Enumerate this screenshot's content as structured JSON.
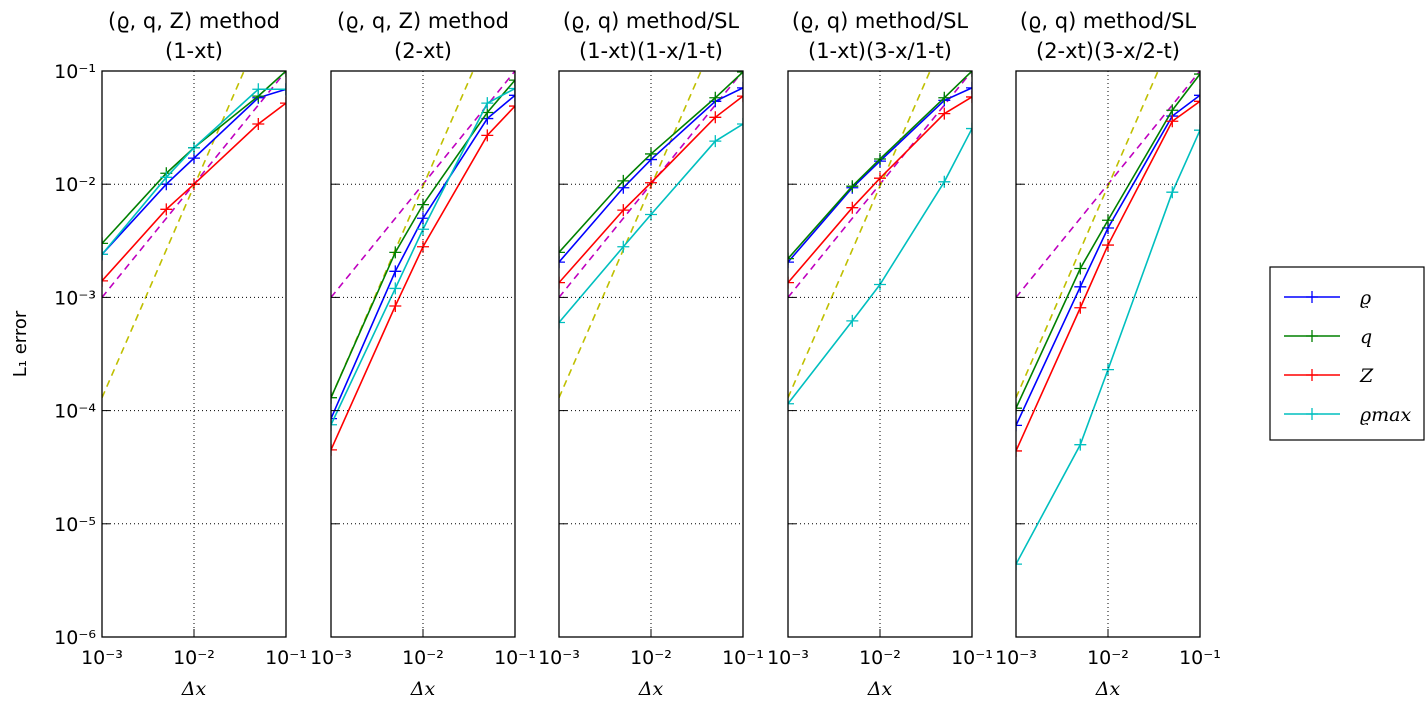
{
  "chart_data": [
    {
      "type": "line",
      "title": "(ϱ, q, Z) method",
      "subtitle": "(1-xt)",
      "x_label": "Δx",
      "y_label": "L₁ error",
      "xscale": "log",
      "yscale": "log",
      "grid": true,
      "legend": "right",
      "xlim": [
        0.001,
        0.1
      ],
      "ylim": [
        1e-06,
        0.1
      ],
      "xticks": [
        {
          "value": 0.001,
          "label": "10⁻³"
        },
        {
          "value": 0.01,
          "label": "10⁻²"
        },
        {
          "value": 0.1,
          "label": "10⁻¹"
        }
      ],
      "yticks": [
        {
          "value": 1e-06,
          "label": "10⁻⁶"
        },
        {
          "value": 1e-05,
          "label": "10⁻⁵"
        },
        {
          "value": 0.0001,
          "label": "10⁻⁴"
        },
        {
          "value": 0.001,
          "label": "10⁻³"
        },
        {
          "value": 0.01,
          "label": "10⁻²"
        },
        {
          "value": 0.1,
          "label": "10⁻¹"
        }
      ],
      "x": [
        0.001,
        0.005,
        0.01,
        0.05,
        0.1
      ],
      "series": [
        {
          "name": "ϱ",
          "color": "#0000ff",
          "values": [
            0.0024,
            0.01,
            0.017,
            0.058,
            0.069
          ]
        },
        {
          "name": "q",
          "color": "#008000",
          "values": [
            0.003,
            0.0125,
            0.021,
            0.06,
            0.1
          ]
        },
        {
          "name": "Z",
          "color": "#ff0000",
          "values": [
            0.0014,
            0.006,
            0.01,
            0.034,
            0.052
          ]
        },
        {
          "name": "ϱmax",
          "color": "#00bfbf",
          "values": [
            0.0024,
            0.0115,
            0.021,
            0.069,
            0.069
          ]
        }
      ],
      "reference_lines": [
        {
          "color": "#bf00bf",
          "x": [
            0.001,
            0.1
          ],
          "values": [
            0.001,
            0.1
          ]
        },
        {
          "color": "#bfbf00",
          "x": [
            0.001,
            0.035
          ],
          "values": [
            0.00013,
            0.1
          ]
        }
      ]
    },
    {
      "type": "line",
      "title": "(ϱ, q, Z) method",
      "subtitle": "(2-xt)",
      "x_label": "Δx",
      "xscale": "log",
      "yscale": "log",
      "grid": true,
      "xlim": [
        0.001,
        0.1
      ],
      "ylim": [
        1e-06,
        0.1
      ],
      "xticks": [
        {
          "value": 0.001,
          "label": "10⁻³"
        },
        {
          "value": 0.01,
          "label": "10⁻²"
        },
        {
          "value": 0.1,
          "label": "10⁻¹"
        }
      ],
      "yticks": [
        1e-06,
        1e-05,
        0.0001,
        0.001,
        0.01,
        0.1
      ],
      "x": [
        0.001,
        0.005,
        0.01,
        0.05,
        0.1
      ],
      "series": [
        {
          "name": "ϱ",
          "color": "#0000ff",
          "values": [
            8.5e-05,
            0.0017,
            0.005,
            0.038,
            0.061
          ]
        },
        {
          "name": "q",
          "color": "#008000",
          "values": [
            0.00013,
            0.0025,
            0.0066,
            0.043,
            0.083
          ]
        },
        {
          "name": "Z",
          "color": "#ff0000",
          "values": [
            4.5e-05,
            0.00084,
            0.0028,
            0.027,
            0.049
          ]
        },
        {
          "name": "ϱmax",
          "color": "#00bfbf",
          "values": [
            7.5e-05,
            0.0012,
            0.004,
            0.052,
            0.07
          ]
        }
      ],
      "reference_lines": [
        {
          "color": "#bf00bf",
          "x": [
            0.001,
            0.1
          ],
          "values": [
            0.001,
            0.1
          ]
        },
        {
          "color": "#bfbf00",
          "x": [
            0.001,
            0.035
          ],
          "values": [
            0.00013,
            0.1
          ]
        }
      ]
    },
    {
      "type": "line",
      "title": "(ϱ, q) method/SL",
      "subtitle": "(1-xt)(1-x/1-t)",
      "x_label": "Δx",
      "xscale": "log",
      "yscale": "log",
      "grid": true,
      "xlim": [
        0.001,
        0.1
      ],
      "ylim": [
        1e-06,
        0.1
      ],
      "xticks": [
        {
          "value": 0.001,
          "label": "10⁻³"
        },
        {
          "value": 0.01,
          "label": "10⁻²"
        },
        {
          "value": 0.1,
          "label": "10⁻¹"
        }
      ],
      "yticks": [
        1e-06,
        1e-05,
        0.0001,
        0.001,
        0.01,
        0.1
      ],
      "x": [
        0.001,
        0.005,
        0.01,
        0.05,
        0.1
      ],
      "series": [
        {
          "name": "ϱ",
          "color": "#0000ff",
          "values": [
            0.00205,
            0.0093,
            0.0165,
            0.054,
            0.071
          ]
        },
        {
          "name": "q",
          "color": "#008000",
          "values": [
            0.0025,
            0.0107,
            0.0185,
            0.058,
            0.098
          ]
        },
        {
          "name": "Z",
          "color": "#ff0000",
          "values": [
            0.00135,
            0.0059,
            0.0103,
            0.039,
            0.06
          ]
        },
        {
          "name": "ϱmax",
          "color": "#00bfbf",
          "values": [
            0.0006,
            0.0028,
            0.0054,
            0.024,
            0.034
          ]
        }
      ],
      "reference_lines": [
        {
          "color": "#bf00bf",
          "x": [
            0.001,
            0.1
          ],
          "values": [
            0.001,
            0.1
          ]
        },
        {
          "color": "#bfbf00",
          "x": [
            0.001,
            0.035
          ],
          "values": [
            0.00013,
            0.1
          ]
        }
      ]
    },
    {
      "type": "line",
      "title": "(ϱ, q) method/SL",
      "subtitle": "(1-xt)(3-x/1-t)",
      "x_label": "Δx",
      "xscale": "log",
      "yscale": "log",
      "grid": true,
      "xlim": [
        0.001,
        0.1
      ],
      "ylim": [
        1e-06,
        0.1
      ],
      "xticks": [
        {
          "value": 0.001,
          "label": "10⁻³"
        },
        {
          "value": 0.01,
          "label": "10⁻²"
        },
        {
          "value": 0.1,
          "label": "10⁻¹"
        }
      ],
      "yticks": [
        1e-06,
        1e-05,
        0.0001,
        0.001,
        0.01,
        0.1
      ],
      "x": [
        0.001,
        0.005,
        0.01,
        0.05,
        0.1
      ],
      "series": [
        {
          "name": "ϱ",
          "color": "#0000ff",
          "values": [
            0.00205,
            0.0093,
            0.016,
            0.055,
            0.071
          ]
        },
        {
          "name": "q",
          "color": "#008000",
          "values": [
            0.0022,
            0.0096,
            0.0167,
            0.058,
            0.1
          ]
        },
        {
          "name": "Z",
          "color": "#ff0000",
          "values": [
            0.00135,
            0.0062,
            0.0113,
            0.042,
            0.059
          ]
        },
        {
          "name": "ϱmax",
          "color": "#00bfbf",
          "values": [
            0.000115,
            0.00062,
            0.0013,
            0.0105,
            0.031
          ]
        }
      ],
      "reference_lines": [
        {
          "color": "#bf00bf",
          "x": [
            0.001,
            0.1
          ],
          "values": [
            0.001,
            0.1
          ]
        },
        {
          "color": "#bfbf00",
          "x": [
            0.001,
            0.035
          ],
          "values": [
            0.00013,
            0.1
          ]
        }
      ]
    },
    {
      "type": "line",
      "title": "(ϱ, q) method/SL",
      "subtitle": "(2-xt)(3-x/2-t)",
      "x_label": "Δx",
      "xscale": "log",
      "yscale": "log",
      "grid": true,
      "xlim": [
        0.001,
        0.1
      ],
      "ylim": [
        1e-06,
        0.1
      ],
      "xticks": [
        {
          "value": 0.001,
          "label": "10⁻³"
        },
        {
          "value": 0.01,
          "label": "10⁻²"
        },
        {
          "value": 0.1,
          "label": "10⁻¹"
        }
      ],
      "yticks": [
        1e-06,
        1e-05,
        0.0001,
        0.001,
        0.01,
        0.1
      ],
      "x": [
        0.001,
        0.005,
        0.01,
        0.05,
        0.1
      ],
      "series": [
        {
          "name": "ϱ",
          "color": "#0000ff",
          "values": [
            7.4e-05,
            0.00124,
            0.0041,
            0.04,
            0.061
          ]
        },
        {
          "name": "q",
          "color": "#008000",
          "values": [
            0.000105,
            0.0018,
            0.0048,
            0.045,
            0.094
          ]
        },
        {
          "name": "Z",
          "color": "#ff0000",
          "values": [
            4.4e-05,
            0.00081,
            0.0029,
            0.036,
            0.054
          ]
        },
        {
          "name": "ϱmax",
          "color": "#00bfbf",
          "values": [
            4.4e-06,
            5e-05,
            0.00023,
            0.0085,
            0.03
          ]
        }
      ],
      "reference_lines": [
        {
          "color": "#bf00bf",
          "x": [
            0.001,
            0.1
          ],
          "values": [
            0.001,
            0.1
          ]
        },
        {
          "color": "#bfbf00",
          "x": [
            0.001,
            0.035
          ],
          "values": [
            0.00013,
            0.1
          ]
        }
      ]
    }
  ]
}
